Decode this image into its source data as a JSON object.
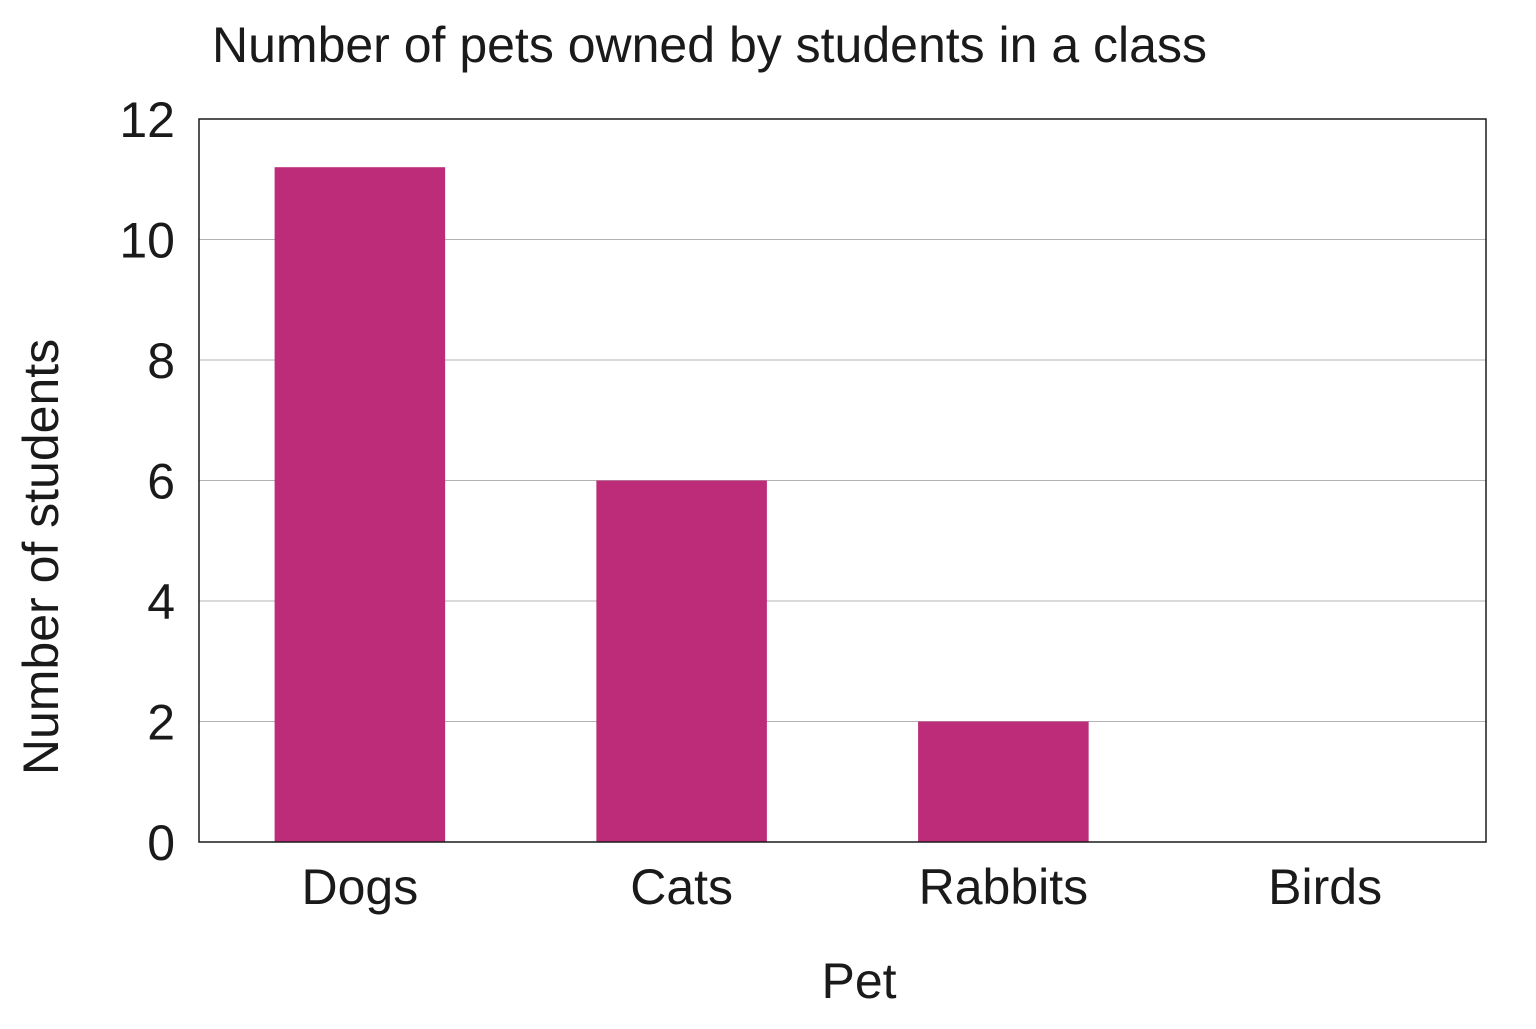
{
  "chart_data": {
    "type": "bar",
    "title": "Number of pets owned by students in a class",
    "xlabel": "Pet",
    "ylabel": "Number of students",
    "categories": [
      "Dogs",
      "Cats",
      "Rabbits",
      "Birds"
    ],
    "values": [
      11.2,
      6,
      2,
      0
    ],
    "ylim": [
      0,
      12
    ],
    "yticks": [
      "0",
      "2",
      "4",
      "6",
      "8",
      "10",
      "12"
    ],
    "grid": true,
    "bar_color": "#bc2c78",
    "grid_color": "#b3b3b3",
    "axis_color": "#1a1a1a"
  }
}
